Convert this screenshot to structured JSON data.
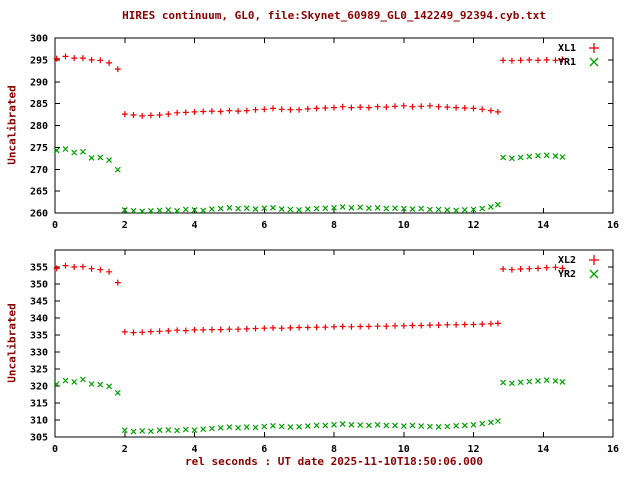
{
  "title": "HIRES continuum, GL0, file:Skynet_60989_GL0_142249_92394.cyb.txt",
  "xlabel": "rel seconds : UT date 2025-11-10T18:50:06.000",
  "colors": {
    "red": "#ee0000",
    "green": "#00a000",
    "axis_label": "#8b0000",
    "foreground": "#000000",
    "background": "#ffffff"
  },
  "chart_data": [
    {
      "type": "scatter",
      "title": "",
      "ylabel": "Uncalibrated",
      "xlabel": "",
      "xlim": [
        0,
        16
      ],
      "ylim": [
        260,
        300
      ],
      "xticks": [
        0,
        2,
        4,
        6,
        8,
        10,
        12,
        14,
        16
      ],
      "yticks": [
        260,
        265,
        270,
        275,
        280,
        285,
        290,
        295,
        300
      ],
      "grid": false,
      "legend_position": "top-right-inside",
      "series": [
        {
          "name": "XL1",
          "marker": "plus",
          "color": "#ee0000",
          "points": [
            [
              0.05,
              295.3
            ],
            [
              0.3,
              295.8
            ],
            [
              0.55,
              295.4
            ],
            [
              0.8,
              295.4
            ],
            [
              1.05,
              295.0
            ],
            [
              1.3,
              294.9
            ],
            [
              1.55,
              294.3
            ],
            [
              1.8,
              292.9
            ],
            [
              2.0,
              282.6
            ],
            [
              2.25,
              282.4
            ],
            [
              2.5,
              282.2
            ],
            [
              2.75,
              282.3
            ],
            [
              3.0,
              282.4
            ],
            [
              3.25,
              282.6
            ],
            [
              3.5,
              282.9
            ],
            [
              3.75,
              283.0
            ],
            [
              4.0,
              283.1
            ],
            [
              4.25,
              283.2
            ],
            [
              4.5,
              283.3
            ],
            [
              4.75,
              283.2
            ],
            [
              5.0,
              283.4
            ],
            [
              5.25,
              283.3
            ],
            [
              5.5,
              283.4
            ],
            [
              5.75,
              283.6
            ],
            [
              6.0,
              283.7
            ],
            [
              6.25,
              283.9
            ],
            [
              6.5,
              283.7
            ],
            [
              6.75,
              283.6
            ],
            [
              7.0,
              283.6
            ],
            [
              7.25,
              283.8
            ],
            [
              7.5,
              283.9
            ],
            [
              7.75,
              284.0
            ],
            [
              8.0,
              284.1
            ],
            [
              8.25,
              284.3
            ],
            [
              8.5,
              284.1
            ],
            [
              8.75,
              284.2
            ],
            [
              9.0,
              284.1
            ],
            [
              9.25,
              284.3
            ],
            [
              9.5,
              284.2
            ],
            [
              9.75,
              284.4
            ],
            [
              10.0,
              284.5
            ],
            [
              10.25,
              284.3
            ],
            [
              10.5,
              284.4
            ],
            [
              10.75,
              284.5
            ],
            [
              11.0,
              284.3
            ],
            [
              11.25,
              284.2
            ],
            [
              11.5,
              284.1
            ],
            [
              11.75,
              284.0
            ],
            [
              12.0,
              283.9
            ],
            [
              12.25,
              283.7
            ],
            [
              12.5,
              283.4
            ],
            [
              12.7,
              283.1
            ],
            [
              12.85,
              294.9
            ],
            [
              13.1,
              294.8
            ],
            [
              13.35,
              294.9
            ],
            [
              13.6,
              295.0
            ],
            [
              13.85,
              294.9
            ],
            [
              14.1,
              295.0
            ],
            [
              14.35,
              294.9
            ],
            [
              14.55,
              295.1
            ]
          ]
        },
        {
          "name": "YR1",
          "marker": "cross",
          "color": "#00a000",
          "points": [
            [
              0.05,
              274.3
            ],
            [
              0.3,
              274.6
            ],
            [
              0.55,
              273.8
            ],
            [
              0.8,
              274.0
            ],
            [
              1.05,
              272.6
            ],
            [
              1.3,
              272.7
            ],
            [
              1.55,
              272.1
            ],
            [
              1.8,
              269.9
            ],
            [
              2.0,
              260.7
            ],
            [
              2.25,
              260.5
            ],
            [
              2.5,
              260.4
            ],
            [
              2.75,
              260.5
            ],
            [
              3.0,
              260.6
            ],
            [
              3.25,
              260.7
            ],
            [
              3.5,
              260.5
            ],
            [
              3.75,
              260.8
            ],
            [
              4.0,
              260.7
            ],
            [
              4.25,
              260.6
            ],
            [
              4.5,
              260.9
            ],
            [
              4.75,
              261.0
            ],
            [
              5.0,
              261.2
            ],
            [
              5.25,
              261.0
            ],
            [
              5.5,
              261.1
            ],
            [
              5.75,
              260.9
            ],
            [
              6.0,
              261.1
            ],
            [
              6.25,
              261.2
            ],
            [
              6.5,
              260.9
            ],
            [
              6.75,
              260.8
            ],
            [
              7.0,
              260.7
            ],
            [
              7.25,
              260.9
            ],
            [
              7.5,
              261.0
            ],
            [
              7.75,
              261.1
            ],
            [
              8.0,
              261.2
            ],
            [
              8.25,
              261.4
            ],
            [
              8.5,
              261.2
            ],
            [
              8.75,
              261.3
            ],
            [
              9.0,
              261.1
            ],
            [
              9.25,
              261.2
            ],
            [
              9.5,
              261.0
            ],
            [
              9.75,
              261.1
            ],
            [
              10.0,
              261.0
            ],
            [
              10.25,
              260.9
            ],
            [
              10.5,
              261.0
            ],
            [
              10.75,
              260.8
            ],
            [
              11.0,
              260.8
            ],
            [
              11.25,
              260.7
            ],
            [
              11.5,
              260.6
            ],
            [
              11.75,
              260.7
            ],
            [
              12.0,
              260.8
            ],
            [
              12.25,
              261.0
            ],
            [
              12.5,
              261.4
            ],
            [
              12.7,
              261.9
            ],
            [
              12.85,
              272.7
            ],
            [
              13.1,
              272.5
            ],
            [
              13.35,
              272.7
            ],
            [
              13.6,
              272.9
            ],
            [
              13.85,
              273.1
            ],
            [
              14.1,
              273.2
            ],
            [
              14.35,
              273.0
            ],
            [
              14.55,
              272.8
            ]
          ]
        }
      ]
    },
    {
      "type": "scatter",
      "title": "",
      "ylabel": "Uncalibrated",
      "xlabel": "rel seconds : UT date 2025-11-10T18:50:06.000",
      "xlim": [
        0,
        16
      ],
      "ylim": [
        305,
        360
      ],
      "xticks": [
        0,
        2,
        4,
        6,
        8,
        10,
        12,
        14,
        16
      ],
      "yticks": [
        305,
        310,
        315,
        320,
        325,
        330,
        335,
        340,
        345,
        350,
        355
      ],
      "grid": false,
      "legend_position": "top-right-inside",
      "series": [
        {
          "name": "XL2",
          "marker": "plus",
          "color": "#ee0000",
          "points": [
            [
              0.05,
              354.6
            ],
            [
              0.3,
              355.4
            ],
            [
              0.55,
              355.0
            ],
            [
              0.8,
              355.1
            ],
            [
              1.05,
              354.5
            ],
            [
              1.3,
              354.2
            ],
            [
              1.55,
              353.6
            ],
            [
              1.8,
              350.4
            ],
            [
              2.0,
              335.9
            ],
            [
              2.25,
              335.7
            ],
            [
              2.5,
              335.8
            ],
            [
              2.75,
              336.0
            ],
            [
              3.0,
              336.1
            ],
            [
              3.25,
              336.2
            ],
            [
              3.5,
              336.4
            ],
            [
              3.75,
              336.3
            ],
            [
              4.0,
              336.5
            ],
            [
              4.25,
              336.5
            ],
            [
              4.5,
              336.6
            ],
            [
              4.75,
              336.6
            ],
            [
              5.0,
              336.7
            ],
            [
              5.25,
              336.7
            ],
            [
              5.5,
              336.8
            ],
            [
              5.75,
              336.9
            ],
            [
              6.0,
              337.0
            ],
            [
              6.25,
              337.1
            ],
            [
              6.5,
              337.0
            ],
            [
              6.75,
              337.1
            ],
            [
              7.0,
              337.2
            ],
            [
              7.25,
              337.2
            ],
            [
              7.5,
              337.3
            ],
            [
              7.75,
              337.3
            ],
            [
              8.0,
              337.4
            ],
            [
              8.25,
              337.5
            ],
            [
              8.5,
              337.4
            ],
            [
              8.75,
              337.5
            ],
            [
              9.0,
              337.5
            ],
            [
              9.25,
              337.6
            ],
            [
              9.5,
              337.6
            ],
            [
              9.75,
              337.7
            ],
            [
              10.0,
              337.7
            ],
            [
              10.25,
              337.8
            ],
            [
              10.5,
              337.8
            ],
            [
              10.75,
              337.9
            ],
            [
              11.0,
              337.9
            ],
            [
              11.25,
              338.0
            ],
            [
              11.5,
              338.0
            ],
            [
              11.75,
              338.1
            ],
            [
              12.0,
              338.1
            ],
            [
              12.25,
              338.2
            ],
            [
              12.5,
              338.3
            ],
            [
              12.7,
              338.4
            ],
            [
              12.85,
              354.4
            ],
            [
              13.1,
              354.2
            ],
            [
              13.35,
              354.4
            ],
            [
              13.6,
              354.5
            ],
            [
              13.85,
              354.6
            ],
            [
              14.1,
              354.8
            ],
            [
              14.35,
              354.9
            ],
            [
              14.55,
              354.6
            ]
          ]
        },
        {
          "name": "YR2",
          "marker": "cross",
          "color": "#00a000",
          "points": [
            [
              0.05,
              320.6
            ],
            [
              0.3,
              321.6
            ],
            [
              0.55,
              321.2
            ],
            [
              0.8,
              321.9
            ],
            [
              1.05,
              320.6
            ],
            [
              1.3,
              320.4
            ],
            [
              1.55,
              319.9
            ],
            [
              1.8,
              318.0
            ],
            [
              2.0,
              307.0
            ],
            [
              2.25,
              306.6
            ],
            [
              2.5,
              306.8
            ],
            [
              2.75,
              306.7
            ],
            [
              3.0,
              307.0
            ],
            [
              3.25,
              307.1
            ],
            [
              3.5,
              306.9
            ],
            [
              3.75,
              307.2
            ],
            [
              4.0,
              307.0
            ],
            [
              4.25,
              307.3
            ],
            [
              4.5,
              307.5
            ],
            [
              4.75,
              307.7
            ],
            [
              5.0,
              307.9
            ],
            [
              5.25,
              307.7
            ],
            [
              5.5,
              307.9
            ],
            [
              5.75,
              307.8
            ],
            [
              6.0,
              308.1
            ],
            [
              6.25,
              308.3
            ],
            [
              6.5,
              308.1
            ],
            [
              6.75,
              307.9
            ],
            [
              7.0,
              308.0
            ],
            [
              7.25,
              308.2
            ],
            [
              7.5,
              308.4
            ],
            [
              7.75,
              308.4
            ],
            [
              8.0,
              308.6
            ],
            [
              8.25,
              308.8
            ],
            [
              8.5,
              308.6
            ],
            [
              8.75,
              308.5
            ],
            [
              9.0,
              308.4
            ],
            [
              9.25,
              308.6
            ],
            [
              9.5,
              308.4
            ],
            [
              9.75,
              308.4
            ],
            [
              10.0,
              308.2
            ],
            [
              10.25,
              308.4
            ],
            [
              10.5,
              308.2
            ],
            [
              10.75,
              308.1
            ],
            [
              11.0,
              308.0
            ],
            [
              11.25,
              308.1
            ],
            [
              11.5,
              308.3
            ],
            [
              11.75,
              308.4
            ],
            [
              12.0,
              308.6
            ],
            [
              12.25,
              308.9
            ],
            [
              12.5,
              309.3
            ],
            [
              12.7,
              309.7
            ],
            [
              12.85,
              321.0
            ],
            [
              13.1,
              320.8
            ],
            [
              13.35,
              321.1
            ],
            [
              13.6,
              321.3
            ],
            [
              13.85,
              321.5
            ],
            [
              14.1,
              321.7
            ],
            [
              14.35,
              321.5
            ],
            [
              14.55,
              321.2
            ]
          ]
        }
      ]
    }
  ]
}
